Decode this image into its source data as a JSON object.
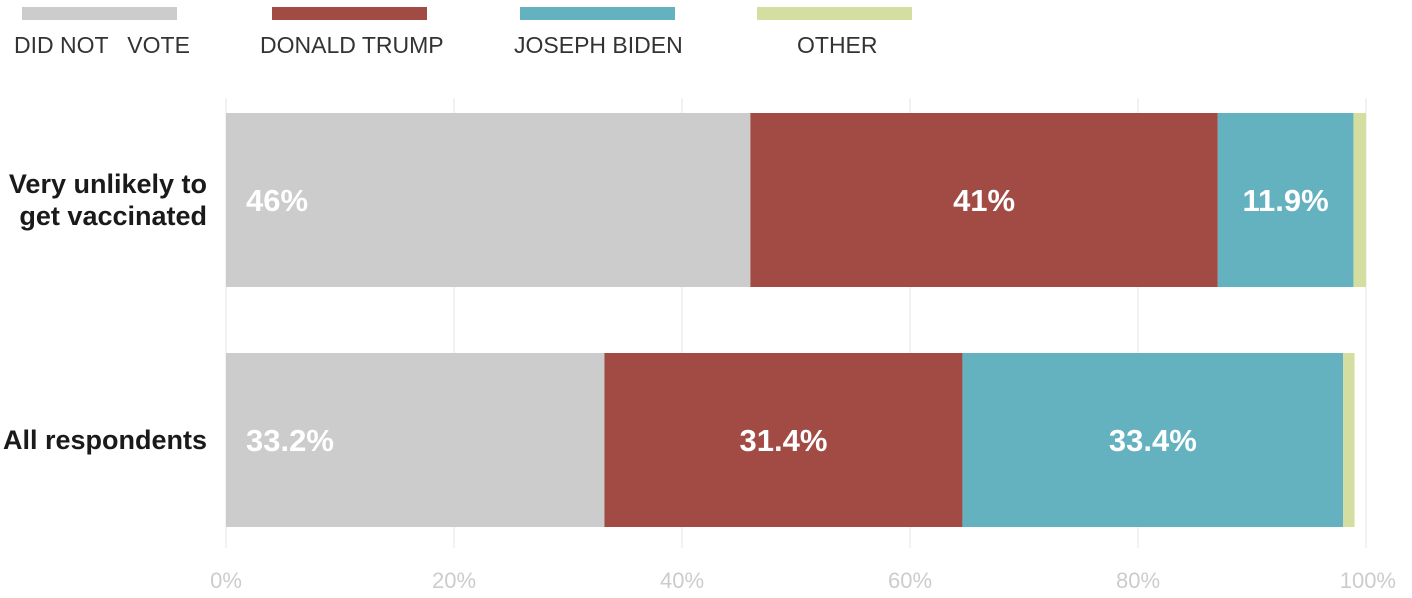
{
  "chart_data": {
    "type": "bar",
    "orientation": "horizontal",
    "stacked": true,
    "title": "",
    "xlabel": "",
    "ylabel": "",
    "categories": [
      "Very unlikely to get vaccinated",
      "All respondents"
    ],
    "category_labels": [
      [
        "Very unlikely to",
        "get vaccinated"
      ],
      [
        "All respondents"
      ]
    ],
    "series": [
      {
        "name": "DID NOT   VOTE",
        "color": "#cccccc",
        "values": [
          46,
          33.2
        ],
        "labels": [
          "46%",
          "33.2%"
        ]
      },
      {
        "name": "DONALD TRUMP",
        "color": "#a24a44",
        "values": [
          41,
          31.4
        ],
        "labels": [
          "41%",
          "31.4%"
        ]
      },
      {
        "name": "JOSEPH BIDEN",
        "color": "#64b1c0",
        "values": [
          11.9,
          33.4
        ],
        "labels": [
          "11.9%",
          "33.4%"
        ]
      },
      {
        "name": "OTHER",
        "color": "#d4dea0",
        "values": [
          1.1,
          1
        ],
        "labels": [
          "",
          ""
        ]
      }
    ],
    "xlim": [
      0,
      100
    ],
    "x_ticks": [
      0,
      20,
      40,
      60,
      80,
      100
    ],
    "x_tick_labels": [
      "0%",
      "20%",
      "40%",
      "60%",
      "80%",
      "100%"
    ],
    "grid": true,
    "legend_position": "top"
  }
}
